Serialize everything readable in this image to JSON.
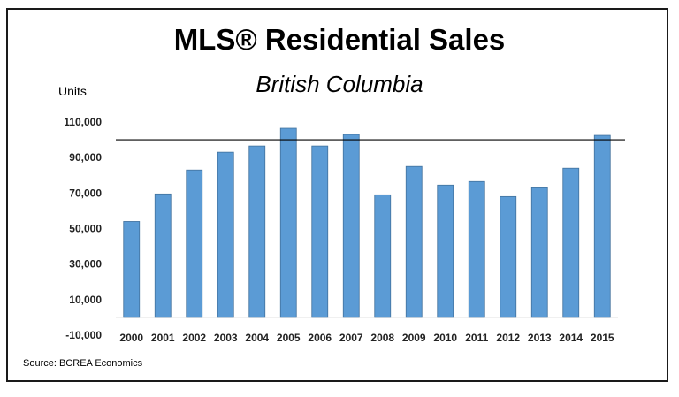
{
  "chart_data": {
    "type": "bar",
    "title": "MLS® Residential Sales",
    "subtitle": "British Columbia",
    "ylabel": "Units",
    "xlabel": "",
    "categories": [
      "2000",
      "2001",
      "2002",
      "2003",
      "2004",
      "2005",
      "2006",
      "2007",
      "2008",
      "2009",
      "2010",
      "2011",
      "2012",
      "2013",
      "2014",
      "2015"
    ],
    "series": [
      {
        "name": "MLS® Residential Sales",
        "values": [
          54000,
          69500,
          83000,
          93000,
          96500,
          106500,
          96500,
          103000,
          69000,
          85000,
          74500,
          76500,
          68000,
          73000,
          84000,
          102500
        ]
      }
    ],
    "ylim": [
      -10000,
      110000
    ],
    "yticks": [
      -10000,
      10000,
      30000,
      50000,
      70000,
      90000,
      110000
    ],
    "ytick_labels": [
      "-10,000",
      "10,000",
      "30,000",
      "50,000",
      "70,000",
      "90,000",
      "110,000"
    ],
    "reference_line": 100000,
    "bar_color": "#5B9BD5",
    "bar_border_color": "#41719C",
    "reference_line_color": "#000000",
    "grid": false
  },
  "source": "Source: BCREA Economics"
}
